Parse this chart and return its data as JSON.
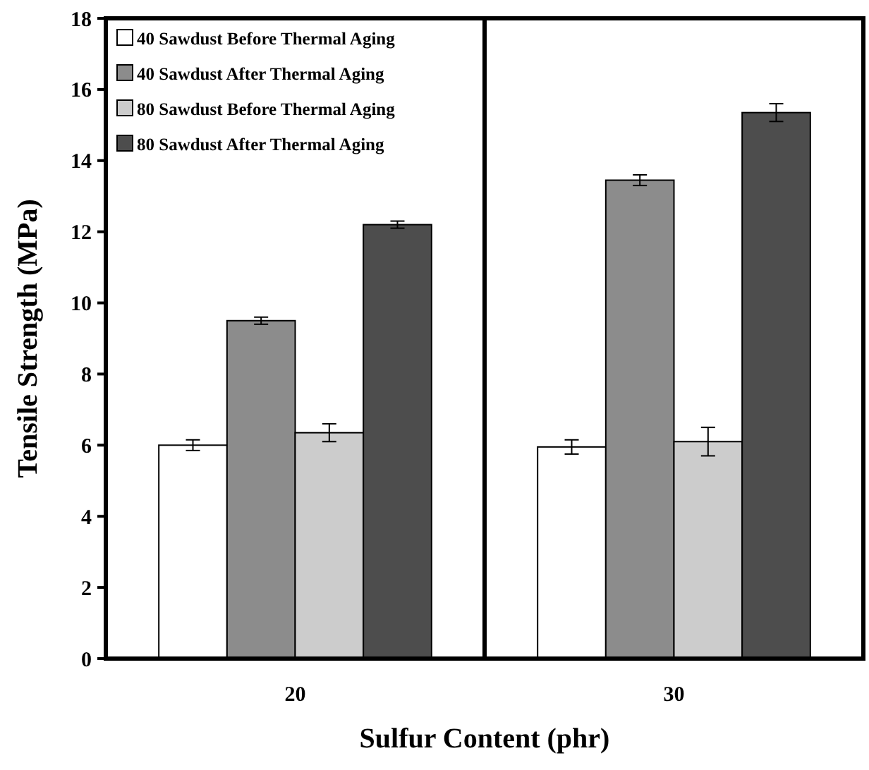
{
  "chart_data": {
    "type": "bar",
    "xlabel": "Sulfur Content (phr)",
    "ylabel": "Tensile Strength (MPa)",
    "categories": [
      "20",
      "30"
    ],
    "series": [
      {
        "name": "40 Sawdust Before Thermal Aging",
        "color": "#ffffff",
        "values": [
          6.0,
          5.95
        ],
        "errors": [
          0.15,
          0.2
        ]
      },
      {
        "name": "40 Sawdust After Thermal Aging",
        "color": "#8c8c8c",
        "values": [
          9.5,
          13.45
        ],
        "errors": [
          0.1,
          0.15
        ]
      },
      {
        "name": "80 Sawdust Before Thermal Aging",
        "color": "#cccccc",
        "values": [
          6.35,
          6.1
        ],
        "errors": [
          0.25,
          0.4
        ]
      },
      {
        "name": "80 Sawdust After Thermal Aging",
        "color": "#4d4d4d",
        "values": [
          12.2,
          15.35
        ],
        "errors": [
          0.1,
          0.25
        ]
      }
    ],
    "ylim": [
      0,
      18
    ],
    "yticks": [
      0,
      2,
      4,
      6,
      8,
      10,
      12,
      14,
      16,
      18
    ],
    "grid": false,
    "legend": "top left"
  }
}
